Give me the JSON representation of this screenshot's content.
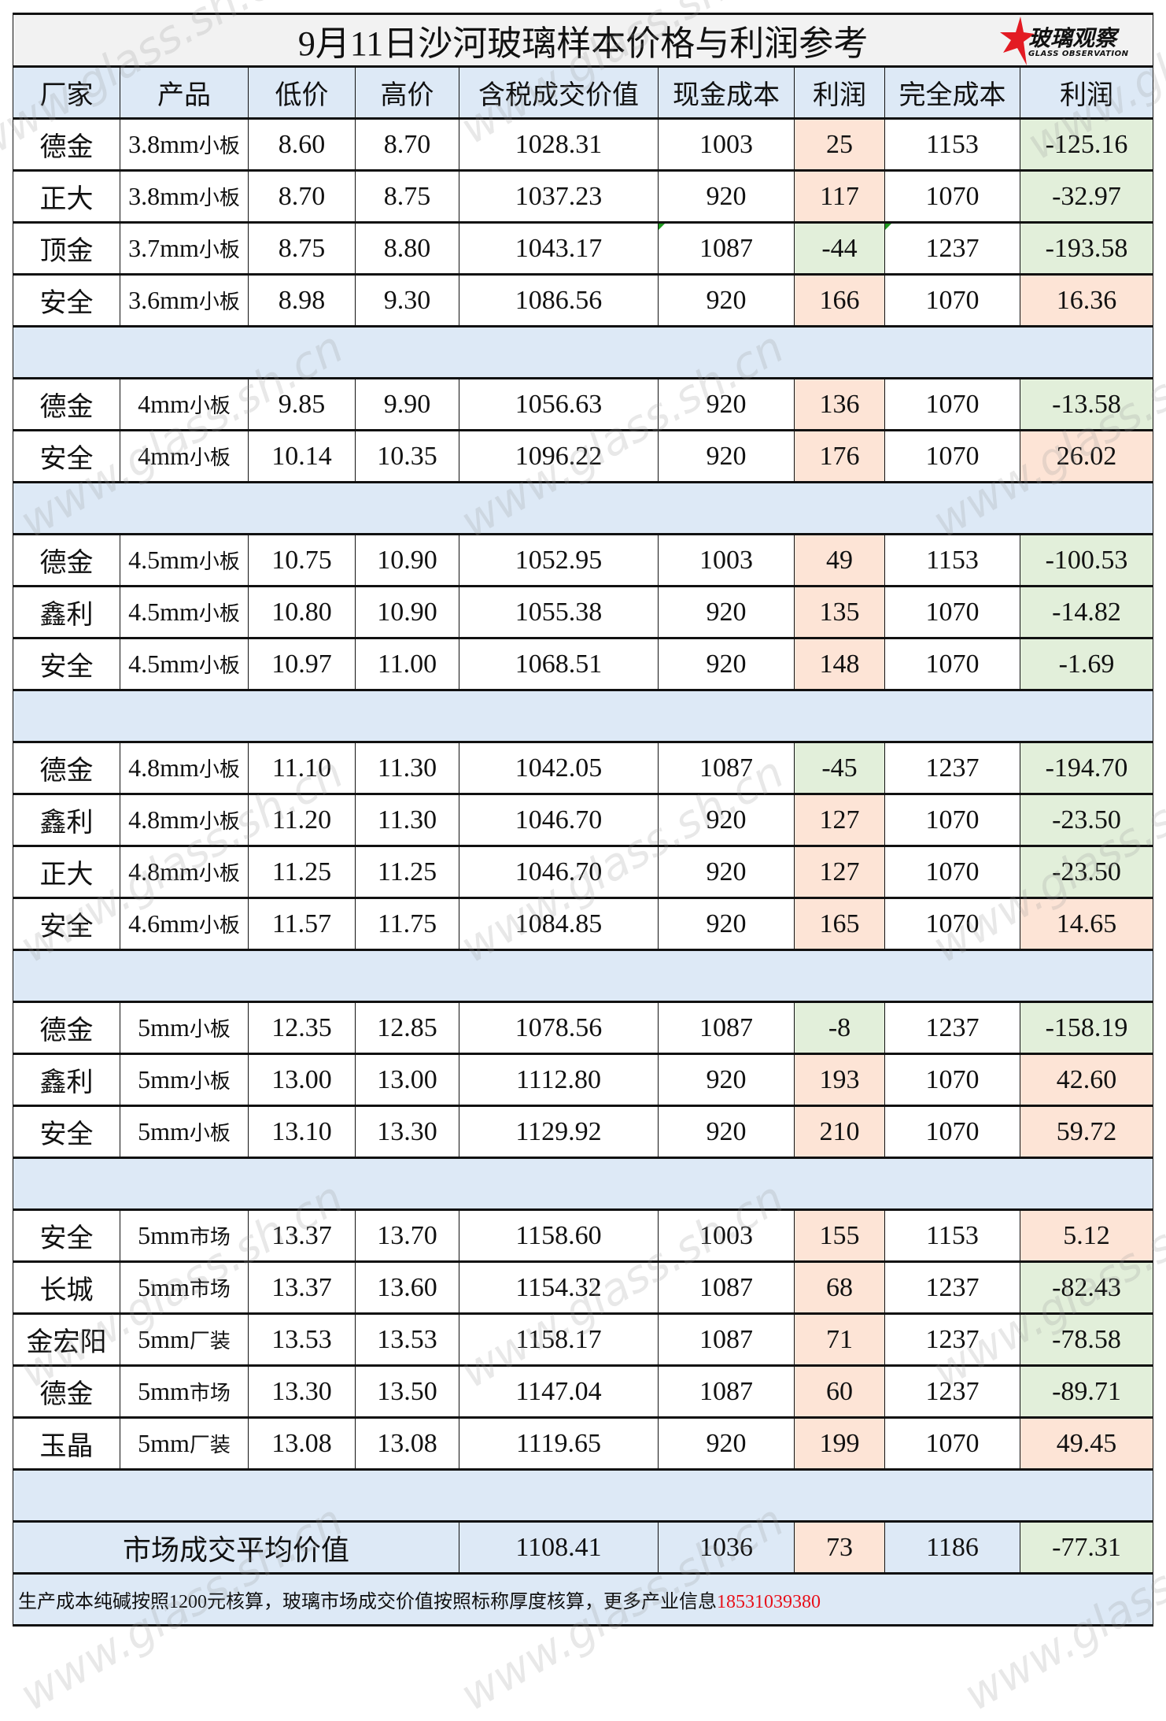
{
  "title": "9月11日沙河玻璃样本价格与利润参考",
  "logo": {
    "cn": "玻璃观察",
    "en": "GLASS OBSERVATION"
  },
  "watermark": "www.glass.sh.cn",
  "colors": {
    "header_bg": "#dde9f6",
    "profit_positive": "#fde4d6",
    "profit_negative": "#e2efda",
    "phone": "#e8101a"
  },
  "columns": [
    "厂家",
    "产品",
    "低价",
    "高价",
    "含税成交价值",
    "现金成本",
    "利润",
    "完全成本",
    "利润"
  ],
  "groups": [
    [
      [
        "德金",
        "3.8mm",
        "小板",
        "8.60",
        "8.70",
        "1028.31",
        "1003",
        "25",
        "1153",
        "-125.16"
      ],
      [
        "正大",
        "3.8mm",
        "小板",
        "8.70",
        "8.75",
        "1037.23",
        "920",
        "117",
        "1070",
        "-32.97"
      ],
      [
        "顶金",
        "3.7mm",
        "小板",
        "8.75",
        "8.80",
        "1043.17",
        "1087",
        "-44",
        "1237",
        "-193.58"
      ],
      [
        "安全",
        "3.6mm",
        "小板",
        "8.98",
        "9.30",
        "1086.56",
        "920",
        "166",
        "1070",
        "16.36"
      ]
    ],
    [
      [
        "德金",
        "4mm",
        "小板",
        "9.85",
        "9.90",
        "1056.63",
        "920",
        "136",
        "1070",
        "-13.58"
      ],
      [
        "安全",
        "4mm",
        "小板",
        "10.14",
        "10.35",
        "1096.22",
        "920",
        "176",
        "1070",
        "26.02"
      ]
    ],
    [
      [
        "德金",
        "4.5mm",
        "小板",
        "10.75",
        "10.90",
        "1052.95",
        "1003",
        "49",
        "1153",
        "-100.53"
      ],
      [
        "鑫利",
        "4.5mm",
        "小板",
        "10.80",
        "10.90",
        "1055.38",
        "920",
        "135",
        "1070",
        "-14.82"
      ],
      [
        "安全",
        "4.5mm",
        "小板",
        "10.97",
        "11.00",
        "1068.51",
        "920",
        "148",
        "1070",
        "-1.69"
      ]
    ],
    [
      [
        "德金",
        "4.8mm",
        "小板",
        "11.10",
        "11.30",
        "1042.05",
        "1087",
        "-45",
        "1237",
        "-194.70"
      ],
      [
        "鑫利",
        "4.8mm",
        "小板",
        "11.20",
        "11.30",
        "1046.70",
        "920",
        "127",
        "1070",
        "-23.50"
      ],
      [
        "正大",
        "4.8mm",
        "小板",
        "11.25",
        "11.25",
        "1046.70",
        "920",
        "127",
        "1070",
        "-23.50"
      ],
      [
        "安全",
        "4.6mm",
        "小板",
        "11.57",
        "11.75",
        "1084.85",
        "920",
        "165",
        "1070",
        "14.65"
      ]
    ],
    [
      [
        "德金",
        "5mm",
        "小板",
        "12.35",
        "12.85",
        "1078.56",
        "1087",
        "-8",
        "1237",
        "-158.19"
      ],
      [
        "鑫利",
        "5mm",
        "小板",
        "13.00",
        "13.00",
        "1112.80",
        "920",
        "193",
        "1070",
        "42.60"
      ],
      [
        "安全",
        "5mm",
        "小板",
        "13.10",
        "13.30",
        "1129.92",
        "920",
        "210",
        "1070",
        "59.72"
      ]
    ],
    [
      [
        "安全",
        "5mm",
        "市场",
        "13.37",
        "13.70",
        "1158.60",
        "1003",
        "155",
        "1153",
        "5.12"
      ],
      [
        "长城",
        "5mm",
        "市场",
        "13.37",
        "13.60",
        "1154.32",
        "1087",
        "68",
        "1237",
        "-82.43"
      ],
      [
        "金宏阳",
        "5mm",
        "厂装",
        "13.53",
        "13.53",
        "1158.17",
        "1087",
        "71",
        "1237",
        "-78.58"
      ],
      [
        "德金",
        "5mm",
        "市场",
        "13.30",
        "13.50",
        "1147.04",
        "1087",
        "60",
        "1237",
        "-89.71"
      ],
      [
        "玉晶",
        "5mm",
        "厂装",
        "13.08",
        "13.08",
        "1119.65",
        "920",
        "199",
        "1070",
        "49.45"
      ]
    ]
  ],
  "average": {
    "label": "市场成交平均价值",
    "values": [
      "1108.41",
      "1036",
      "73",
      "1186",
      "-77.31"
    ]
  },
  "footer": {
    "note": "生产成本纯碱按照1200元核算，玻璃市场成交价值按照标称厚度核算，更多产业信息",
    "phone": "18531039380"
  }
}
